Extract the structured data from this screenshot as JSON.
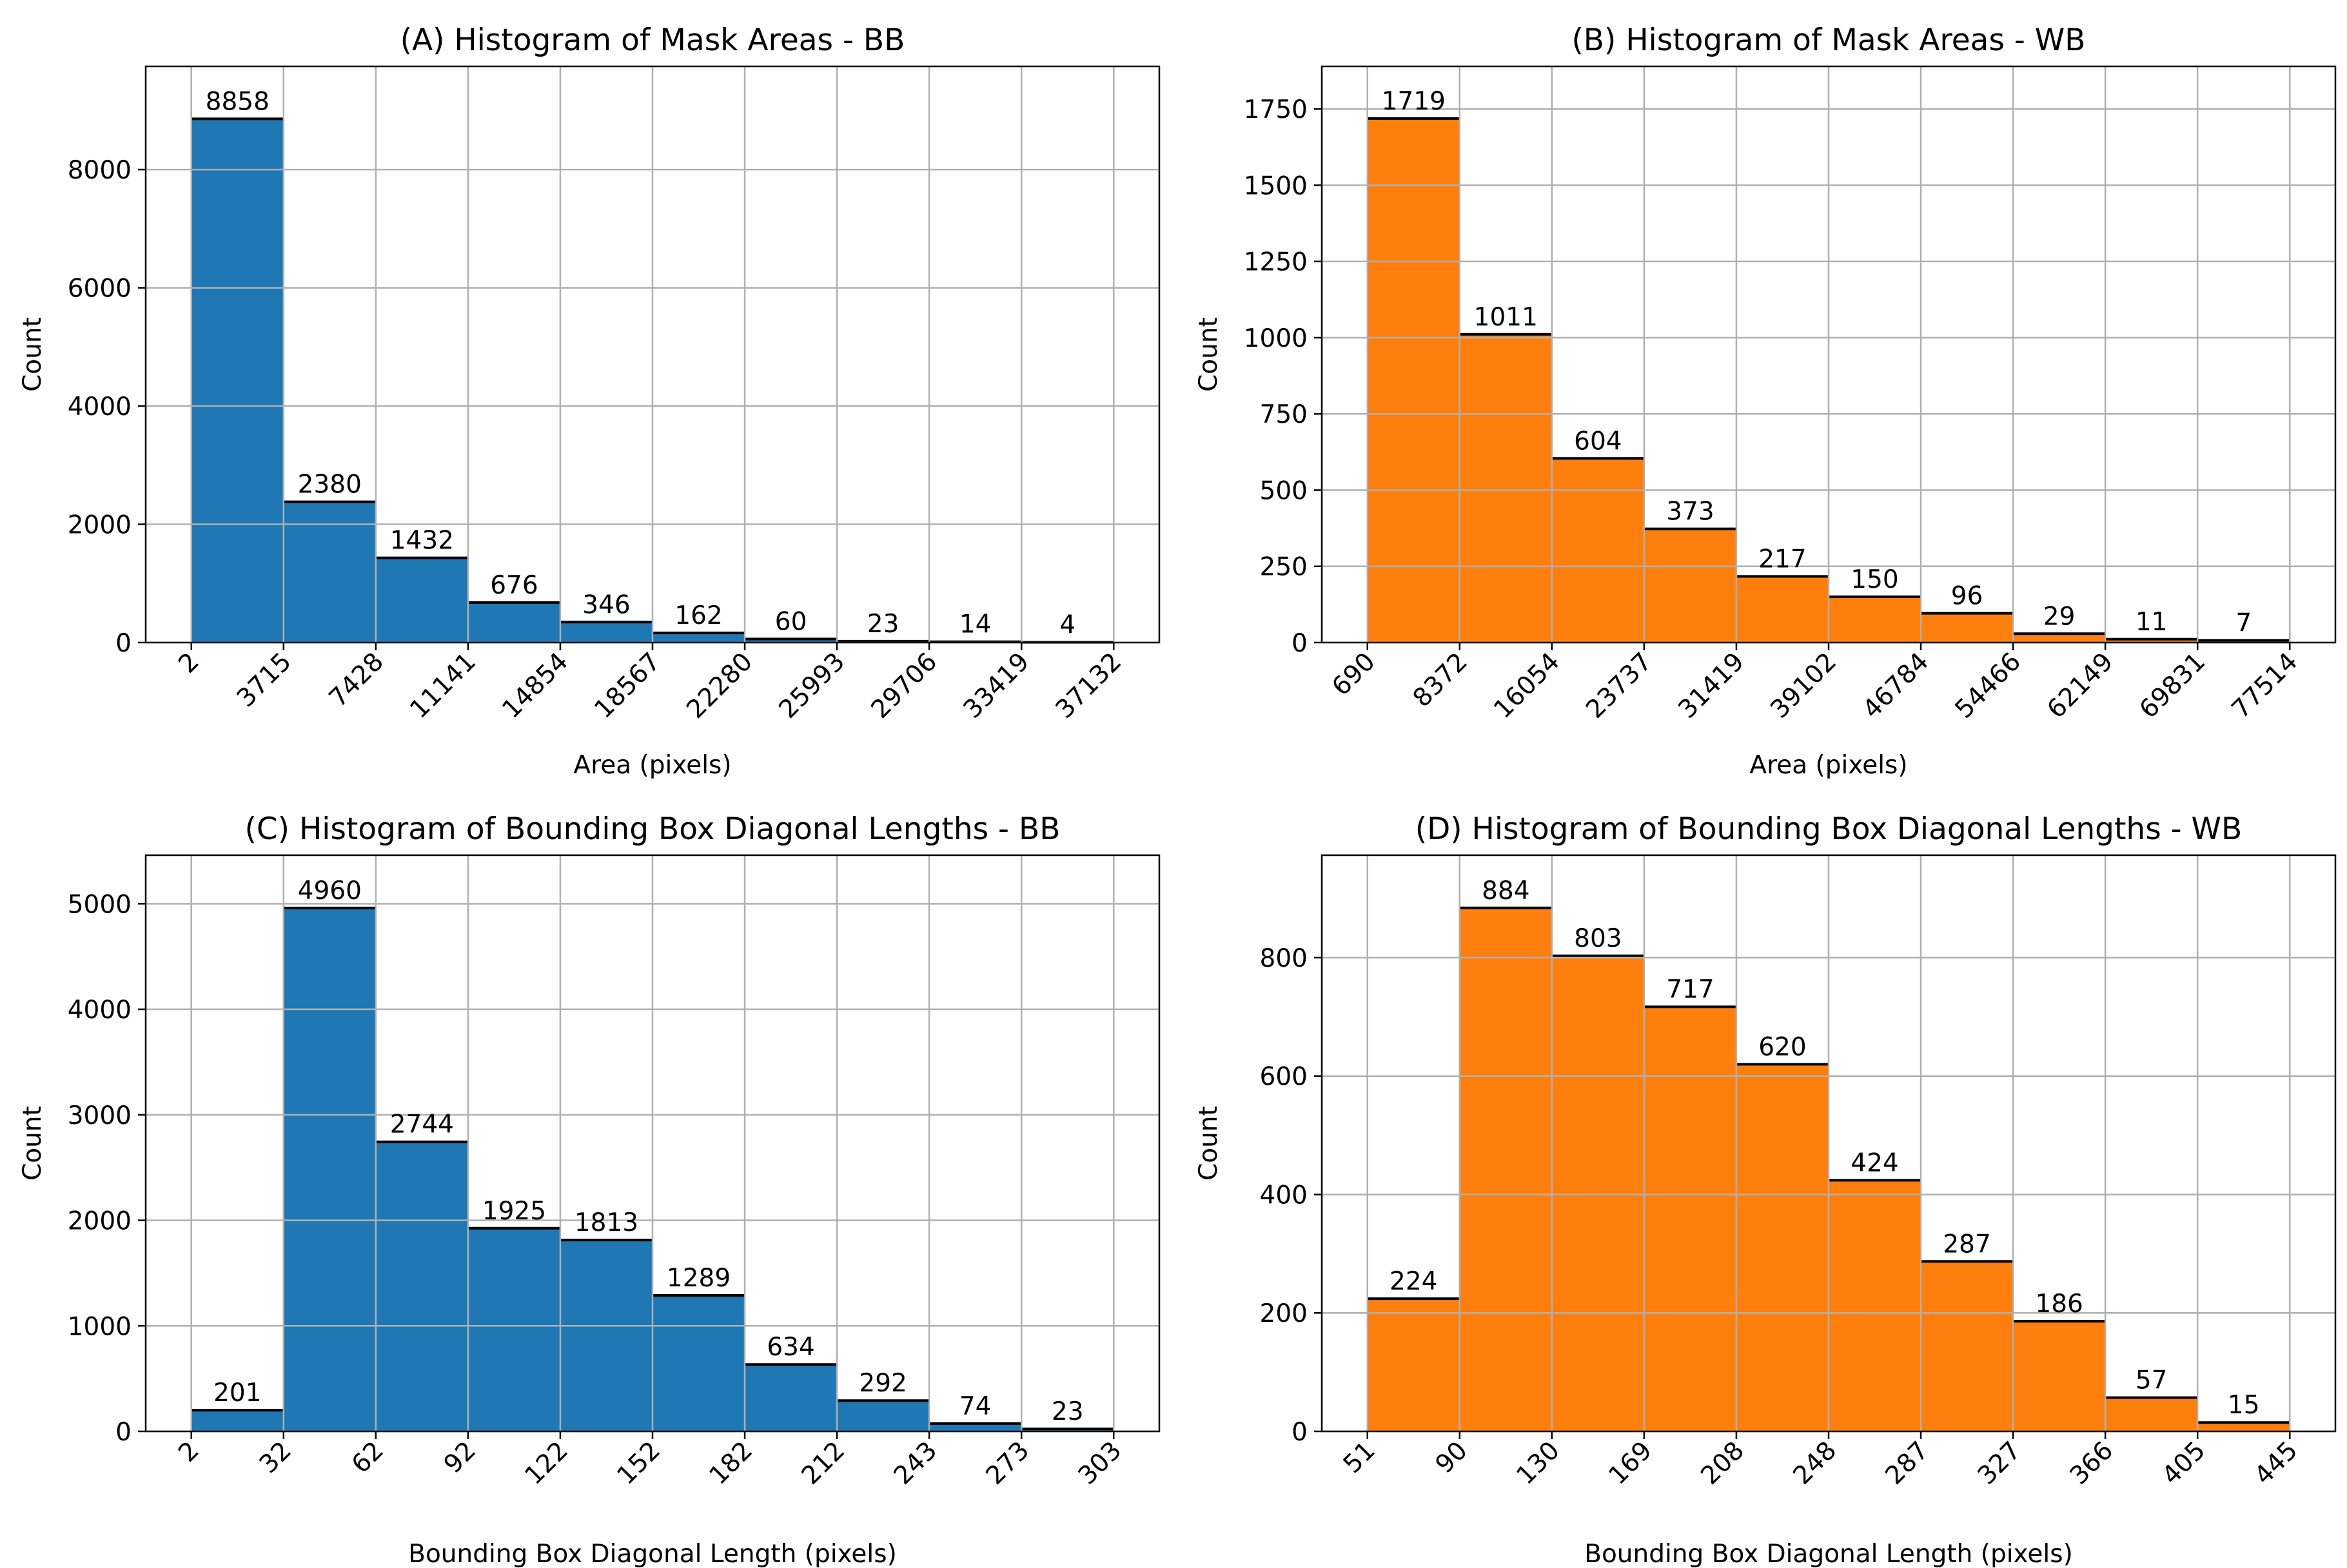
{
  "figure": {
    "grid_color": "#b0b0b0"
  },
  "chart_data": [
    {
      "type": "bar",
      "title": "(A) Histogram of Mask Areas - BB",
      "xlabel": "Area (pixels)",
      "ylabel": "Count",
      "color": "#1f77b4",
      "bin_edges": [
        "2",
        "3715",
        "7428",
        "11141",
        "14854",
        "18567",
        "22280",
        "25993",
        "29706",
        "33419",
        "37132"
      ],
      "values": [
        8858,
        2380,
        1432,
        676,
        346,
        162,
        60,
        23,
        14,
        4
      ],
      "ylim": [
        0,
        9745
      ],
      "yticks": [
        0,
        2000,
        4000,
        6000,
        8000
      ],
      "grid": true
    },
    {
      "type": "bar",
      "title": "(B) Histogram of Mask Areas - WB",
      "xlabel": "Area (pixels)",
      "ylabel": "Count",
      "color": "#ff7f0e",
      "bin_edges": [
        "690",
        "8372",
        "16054",
        "23737",
        "31419",
        "39102",
        "46784",
        "54466",
        "62149",
        "69831",
        "77514"
      ],
      "values": [
        1719,
        1011,
        604,
        373,
        217,
        150,
        96,
        29,
        11,
        7
      ],
      "ylim": [
        0,
        1890
      ],
      "yticks": [
        0,
        250,
        500,
        750,
        1000,
        1250,
        1500,
        1750
      ],
      "grid": true
    },
    {
      "type": "bar",
      "title": "(C) Histogram of Bounding Box Diagonal Lengths - BB",
      "xlabel": "Bounding Box Diagonal Length (pixels)",
      "ylabel": "Count",
      "color": "#1f77b4",
      "bin_edges": [
        "2",
        "32",
        "62",
        "92",
        "122",
        "152",
        "182",
        "212",
        "243",
        "273",
        "303"
      ],
      "values": [
        201,
        4960,
        2744,
        1925,
        1813,
        1289,
        634,
        292,
        74,
        23
      ],
      "ylim": [
        0,
        5460
      ],
      "yticks": [
        0,
        1000,
        2000,
        3000,
        4000,
        5000
      ],
      "grid": true
    },
    {
      "type": "bar",
      "title": "(D) Histogram of Bounding Box Diagonal Lengths - WB",
      "xlabel": "Bounding Box Diagonal Length (pixels)",
      "ylabel": "Count",
      "color": "#ff7f0e",
      "bin_edges": [
        "51",
        "90",
        "130",
        "169",
        "208",
        "248",
        "287",
        "327",
        "366",
        "405",
        "445"
      ],
      "values": [
        224,
        884,
        803,
        717,
        620,
        424,
        287,
        186,
        57,
        15
      ],
      "ylim": [
        0,
        973
      ],
      "yticks": [
        0,
        200,
        400,
        600,
        800
      ],
      "grid": true
    }
  ]
}
